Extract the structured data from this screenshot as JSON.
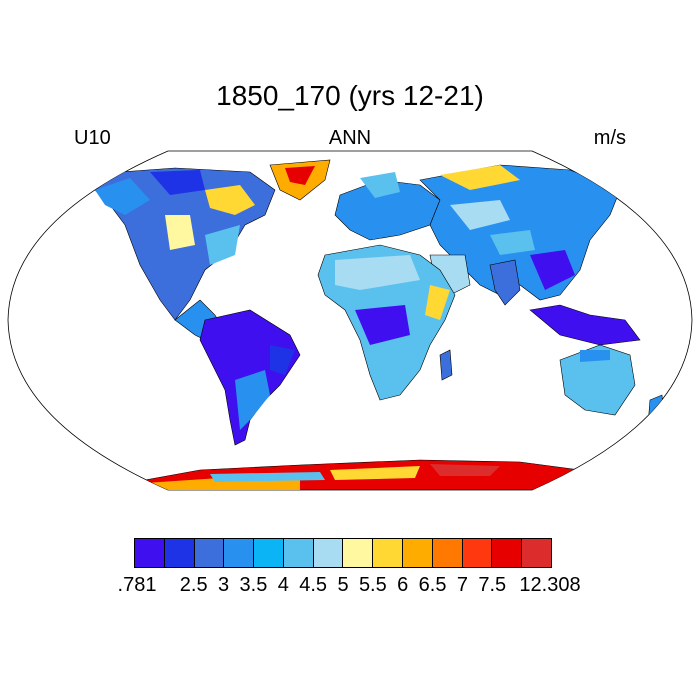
{
  "header": {
    "title": "1850_170 (yrs 12-21)",
    "left_label": "U10",
    "center_label": "ANN",
    "right_label": "m/s"
  },
  "map": {
    "projection": "Robinson",
    "variable": "U10",
    "season": "ANN",
    "units": "m/s",
    "regions": [
      {
        "name": "North America interior",
        "level": "3-4"
      },
      {
        "name": "Canada / Alaska",
        "level": "2.5-3.5"
      },
      {
        "name": "Greenland",
        "level": "6-12.308"
      },
      {
        "name": "Amazon basin",
        "level": ".781-2.5"
      },
      {
        "name": "Congo basin",
        "level": ".781-2.5"
      },
      {
        "name": "Southeast Asia / Indonesia",
        "level": ".781-2.5"
      },
      {
        "name": "Horn of Africa",
        "level": "5.5-6.5"
      },
      {
        "name": "Sahara",
        "level": "3.5-5"
      },
      {
        "name": "Australia",
        "level": "4-5"
      },
      {
        "name": "Antarctica coast",
        "level": "6.5-12.308"
      },
      {
        "name": "Siberia",
        "level": "3-4.5"
      }
    ]
  },
  "colorbar": {
    "colors": [
      "#3f0ff0",
      "#1e32e6",
      "#3c6edc",
      "#2891f0",
      "#0ab4f5",
      "#5ac0ee",
      "#a8dcf2",
      "#fff8a0",
      "#ffd834",
      "#ffac00",
      "#ff7800",
      "#ff3810",
      "#e60000",
      "#dc2c2c"
    ],
    "tick_labels": [
      ".781",
      "2.5",
      "3",
      "3.5",
      "4",
      "4.5",
      "5",
      "5.5",
      "6",
      "6.5",
      "7",
      "7.5",
      "12.308"
    ]
  }
}
